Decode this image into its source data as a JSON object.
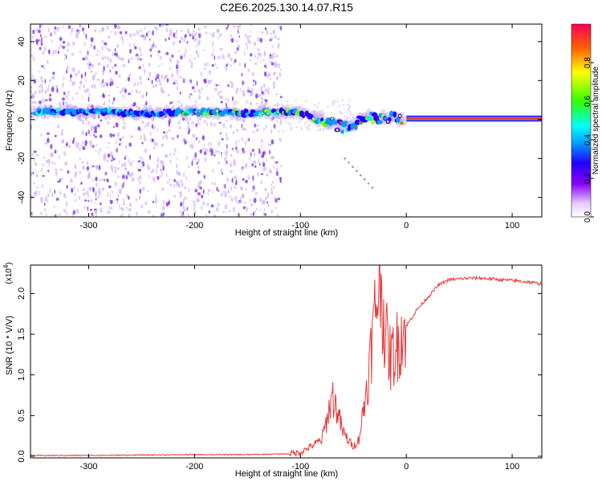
{
  "title": "C2E6.2025.130.14.07.R15",
  "colors": {
    "snr_line": "#e83a3a",
    "axis": "#000000",
    "band": [
      "#2200ff",
      "#0099ff",
      "#00ffcc",
      "#66ff00",
      "#ffee00",
      "#ff4400"
    ],
    "scatter": "#6a2bd9"
  },
  "chart_data": [
    {
      "type": "heatmap",
      "title": "C2E6.2025.130.14.07.R15",
      "xlabel": "Height of straight line (km)",
      "ylabel": "Frequency (Hz)",
      "xlim": [
        -355,
        128
      ],
      "ylim": [
        -50,
        49
      ],
      "x_ticks": [
        "-300",
        "-200",
        "-100",
        "0",
        "100"
      ],
      "x_tick_values": [
        -300,
        -200,
        -100,
        0,
        100
      ],
      "y_ticks": [
        "40",
        "20",
        "0",
        "-20",
        "-40"
      ],
      "y_tick_values": [
        40,
        20,
        0,
        -20,
        -40
      ],
      "colorbar": {
        "label": "Normalized spectral amplitude",
        "ticks": [
          "0.0",
          "0.2",
          "0.4",
          "0.6",
          "0.8"
        ],
        "tick_values": [
          0.0,
          0.2,
          0.4,
          0.6,
          0.8
        ],
        "range": [
          0,
          1
        ]
      },
      "doppler_track": {
        "x": [
          -350,
          -300,
          -250,
          -200,
          -150,
          -120,
          -100,
          -80,
          -60,
          -50,
          -40,
          -30,
          -20,
          -10,
          0,
          50,
          100,
          128
        ],
        "y": [
          4,
          4,
          3,
          4,
          3,
          4,
          3,
          0,
          -4,
          -3,
          2,
          1,
          1,
          0.5,
          0.5,
          0.5,
          0.5,
          0.5
        ],
        "amplitude": [
          0.25,
          0.3,
          0.3,
          0.55,
          0.55,
          0.55,
          0.6,
          0.6,
          0.5,
          0.45,
          0.7,
          0.8,
          0.9,
          0.95,
          1.0,
          1.0,
          1.0,
          0.9
        ]
      },
      "noise_region_x": [
        -355,
        -118
      ],
      "faint_streak": {
        "x": [
          -58,
          -32
        ],
        "y": [
          -20,
          -35
        ]
      }
    },
    {
      "type": "line",
      "xlabel": "Height of straight line (km)",
      "ylabel": "SNR (10 * V/V)",
      "ylabel_multiplier": "(x10",
      "ylabel_multiplier_exp": "4",
      "ylabel_multiplier_close": ")",
      "xlim": [
        -355,
        128
      ],
      "ylim": [
        -0.02,
        2.35
      ],
      "x_ticks": [
        "-300",
        "-200",
        "-100",
        "0",
        "100"
      ],
      "x_tick_values": [
        -300,
        -200,
        -100,
        0,
        100
      ],
      "y_ticks": [
        "0.0",
        "0.5",
        "1.0",
        "1.5",
        "2.0"
      ],
      "y_tick_values": [
        0.0,
        0.5,
        1.0,
        1.5,
        2.0
      ],
      "series": [
        {
          "x": [
            -355,
            -300,
            -200,
            -150,
            -110,
            -100,
            -90,
            -80,
            -75,
            -70,
            -65,
            -60,
            -55,
            -50,
            -45,
            -40,
            -35,
            -30,
            -25,
            -20,
            -15,
            -10,
            -5,
            0,
            10,
            20,
            30,
            40,
            50,
            60,
            70,
            80,
            90,
            100,
            110,
            128
          ],
          "y": [
            0.01,
            0.01,
            0.02,
            0.02,
            0.03,
            0.05,
            0.12,
            0.2,
            0.45,
            0.75,
            0.55,
            0.3,
            0.2,
            0.12,
            0.2,
            0.6,
            1.1,
            1.7,
            2.3,
            1.5,
            1.2,
            1.3,
            1.5,
            1.6,
            1.8,
            1.95,
            2.1,
            2.17,
            2.18,
            2.19,
            2.19,
            2.18,
            2.17,
            2.16,
            2.15,
            2.12
          ]
        }
      ]
    }
  ]
}
